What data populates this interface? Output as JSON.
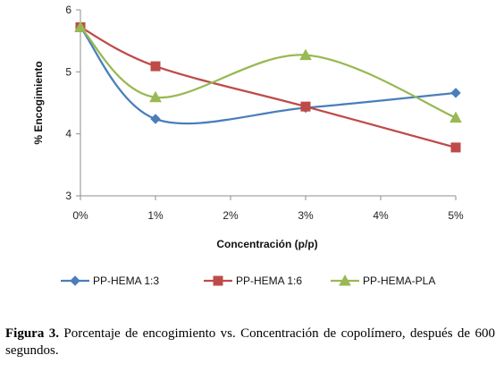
{
  "chart_data": {
    "type": "line",
    "xlabel": "Concentración (p/p)",
    "ylabel": "% Encogimiento",
    "categories": [
      "0%",
      "1%",
      "2%",
      "3%",
      "4%",
      "5%"
    ],
    "x": [
      0,
      1,
      2,
      3,
      4,
      5
    ],
    "ylim": [
      3,
      6
    ],
    "yticks": [
      "3",
      "4",
      "5",
      "6"
    ],
    "grid": false,
    "legend": "bottom",
    "series": [
      {
        "name": "PP-HEMA 1:3",
        "color": "#4a7ebb",
        "marker": "diamond",
        "points": [
          {
            "x": 0,
            "y": 5.72
          },
          {
            "x": 1,
            "y": 4.24
          },
          {
            "x": 3,
            "y": 4.42
          },
          {
            "x": 5,
            "y": 4.66
          }
        ]
      },
      {
        "name": "PP-HEMA 1:6",
        "color": "#be4b48",
        "marker": "square",
        "points": [
          {
            "x": 0,
            "y": 5.72
          },
          {
            "x": 1,
            "y": 5.09
          },
          {
            "x": 3,
            "y": 4.44
          },
          {
            "x": 5,
            "y": 3.78
          }
        ]
      },
      {
        "name": "PP-HEMA-PLA",
        "color": "#98b954",
        "marker": "triangle",
        "points": [
          {
            "x": 0,
            "y": 5.72
          },
          {
            "x": 1,
            "y": 4.59
          },
          {
            "x": 3,
            "y": 5.27
          },
          {
            "x": 5,
            "y": 4.26
          }
        ]
      }
    ]
  },
  "caption": {
    "label": "Figura 3.",
    "text": " Porcentaje de encogimiento vs. Concentración de copolímero, después de 600 segundos."
  }
}
